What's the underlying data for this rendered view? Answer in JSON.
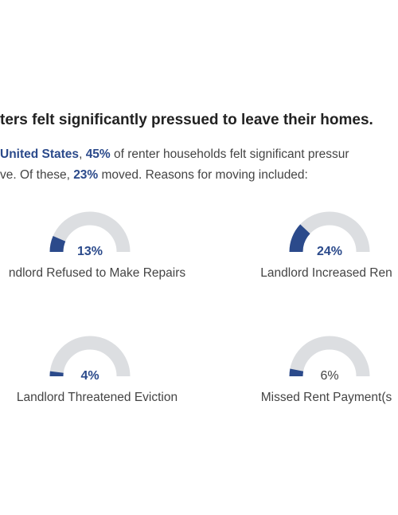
{
  "headline": "ters felt significantly pressued to leave their homes.",
  "subtitle": {
    "line1_pre": "United States",
    "line1_mid1": ", ",
    "line1_pct": "45%",
    "line1_post": " of renter households felt significant pressur",
    "line2_pre": "ve. Of these, ",
    "line2_pct": "23%",
    "line2_post": " moved. Reasons for moving included:"
  },
  "colors": {
    "accent": "#2b4a8b",
    "track": "#dcdee1",
    "text": "#444444"
  },
  "chart_data": {
    "type": "gauge",
    "max": 100,
    "items": [
      {
        "label": "ndlord Refused to Make Repairs",
        "value": 13,
        "value_label": "13%",
        "bold": true
      },
      {
        "label": "Landlord Increased Ren",
        "value": 24,
        "value_label": "24%",
        "bold": true
      },
      {
        "label": "Landlord Threatened Eviction",
        "value": 4,
        "value_label": "4%",
        "bold": true
      },
      {
        "label": "Missed Rent Payment(s",
        "value": 6,
        "value_label": "6%",
        "bold": false
      }
    ]
  }
}
